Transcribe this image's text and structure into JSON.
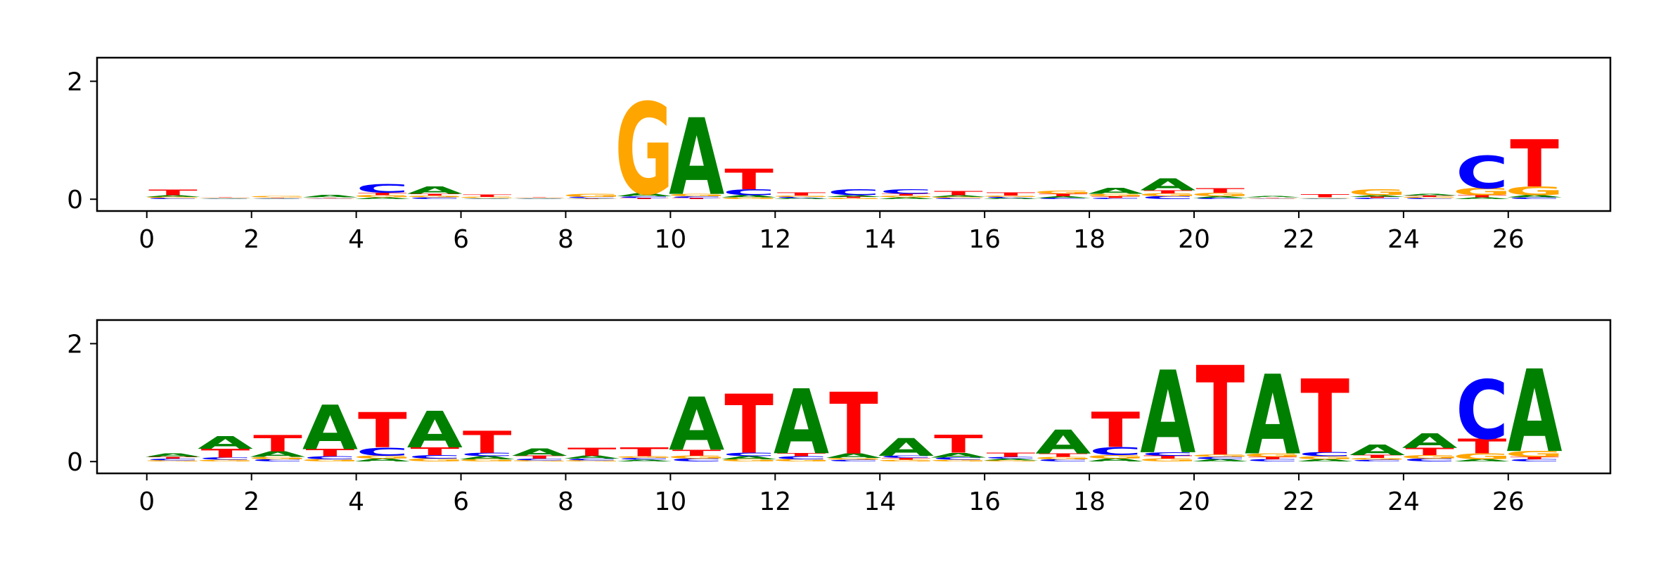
{
  "chart_data": [
    {
      "type": "sequence-logo",
      "x_range": [
        0,
        27
      ],
      "ylim": [
        0,
        2.4
      ],
      "xticks": [
        "0",
        "2",
        "4",
        "6",
        "8",
        "10",
        "12",
        "14",
        "16",
        "18",
        "20",
        "22",
        "24",
        "26"
      ],
      "yticks": [
        "0",
        "2"
      ],
      "colors": {
        "A": "#008000",
        "C": "#0000ff",
        "G": "#ffa500",
        "T": "#ff0000"
      },
      "positions": [
        {
          "x": 0,
          "heights": {
            "A": 0.03,
            "C": 0.02,
            "G": 0.02,
            "T": 0.09
          }
        },
        {
          "x": 1,
          "heights": {
            "A": 0.01,
            "C": 0.01,
            "G": 0.01,
            "T": 0.01
          }
        },
        {
          "x": 2,
          "heights": {
            "A": 0.01,
            "C": 0.01,
            "G": 0.02,
            "T": 0.01
          }
        },
        {
          "x": 3,
          "heights": {
            "A": 0.04,
            "C": 0.01,
            "G": 0.01,
            "T": 0.01
          }
        },
        {
          "x": 4,
          "heights": {
            "A": 0.03,
            "C": 0.15,
            "G": 0.04,
            "T": 0.04
          }
        },
        {
          "x": 5,
          "heights": {
            "A": 0.12,
            "C": 0.03,
            "G": 0.03,
            "T": 0.03
          }
        },
        {
          "x": 6,
          "heights": {
            "A": 0.01,
            "C": 0.01,
            "G": 0.02,
            "T": 0.04
          }
        },
        {
          "x": 7,
          "heights": {
            "A": 0.01,
            "C": 0.01,
            "G": 0.01,
            "T": 0.01
          }
        },
        {
          "x": 8,
          "heights": {
            "A": 0.01,
            "C": 0.02,
            "G": 0.05,
            "T": 0.01
          }
        },
        {
          "x": 9,
          "heights": {
            "A": 0.05,
            "C": 0.03,
            "G": 1.55,
            "T": 0.02
          }
        },
        {
          "x": 10,
          "heights": {
            "A": 1.3,
            "C": 0.03,
            "G": 0.04,
            "T": 0.02
          }
        },
        {
          "x": 11,
          "heights": {
            "A": 0.04,
            "C": 0.1,
            "G": 0.03,
            "T": 0.35
          }
        },
        {
          "x": 12,
          "heights": {
            "A": 0.02,
            "C": 0.02,
            "G": 0.02,
            "T": 0.05
          }
        },
        {
          "x": 13,
          "heights": {
            "A": 0.03,
            "C": 0.1,
            "G": 0.02,
            "T": 0.02
          }
        },
        {
          "x": 14,
          "heights": {
            "A": 0.03,
            "C": 0.08,
            "G": 0.03,
            "T": 0.03
          }
        },
        {
          "x": 15,
          "heights": {
            "A": 0.03,
            "C": 0.02,
            "G": 0.02,
            "T": 0.07
          }
        },
        {
          "x": 16,
          "heights": {
            "A": 0.02,
            "C": 0.02,
            "G": 0.02,
            "T": 0.05
          }
        },
        {
          "x": 17,
          "heights": {
            "A": 0.03,
            "C": 0.02,
            "G": 0.05,
            "T": 0.04
          }
        },
        {
          "x": 18,
          "heights": {
            "A": 0.1,
            "C": 0.02,
            "G": 0.04,
            "T": 0.03
          }
        },
        {
          "x": 19,
          "heights": {
            "A": 0.2,
            "C": 0.05,
            "G": 0.05,
            "T": 0.05
          }
        },
        {
          "x": 20,
          "heights": {
            "A": 0.03,
            "C": 0.02,
            "G": 0.06,
            "T": 0.08
          }
        },
        {
          "x": 21,
          "heights": {
            "A": 0.02,
            "C": 0.01,
            "G": 0.01,
            "T": 0.01
          }
        },
        {
          "x": 22,
          "heights": {
            "A": 0.01,
            "C": 0.01,
            "G": 0.01,
            "T": 0.05
          }
        },
        {
          "x": 23,
          "heights": {
            "A": 0.03,
            "C": 0.02,
            "G": 0.1,
            "T": 0.02
          }
        },
        {
          "x": 24,
          "heights": {
            "A": 0.03,
            "C": 0.02,
            "G": 0.02,
            "T": 0.02
          }
        },
        {
          "x": 25,
          "heights": {
            "A": 0.03,
            "C": 0.55,
            "G": 0.12,
            "T": 0.04
          }
        },
        {
          "x": 26,
          "heights": {
            "A": 0.04,
            "C": 0.03,
            "G": 0.15,
            "T": 0.8
          }
        }
      ]
    },
    {
      "type": "sequence-logo",
      "x_range": [
        0,
        27
      ],
      "ylim": [
        0,
        2.4
      ],
      "xticks": [
        "0",
        "2",
        "4",
        "6",
        "8",
        "10",
        "12",
        "14",
        "16",
        "18",
        "20",
        "22",
        "24",
        "26"
      ],
      "yticks": [
        "0",
        "2"
      ],
      "colors": {
        "A": "#008000",
        "C": "#0000ff",
        "G": "#ffa500",
        "T": "#ff0000"
      },
      "positions": [
        {
          "x": 0,
          "heights": {
            "A": 0.06,
            "C": 0.03,
            "G": 0.02,
            "T": 0.03
          }
        },
        {
          "x": 1,
          "heights": {
            "A": 0.22,
            "C": 0.04,
            "G": 0.03,
            "T": 0.15
          }
        },
        {
          "x": 2,
          "heights": {
            "A": 0.09,
            "C": 0.04,
            "G": 0.04,
            "T": 0.28
          }
        },
        {
          "x": 3,
          "heights": {
            "A": 0.75,
            "C": 0.05,
            "G": 0.04,
            "T": 0.12
          }
        },
        {
          "x": 4,
          "heights": {
            "A": 0.05,
            "C": 0.14,
            "G": 0.05,
            "T": 0.6
          }
        },
        {
          "x": 5,
          "heights": {
            "A": 0.62,
            "C": 0.06,
            "G": 0.05,
            "T": 0.13
          }
        },
        {
          "x": 6,
          "heights": {
            "A": 0.05,
            "C": 0.06,
            "G": 0.04,
            "T": 0.37
          }
        },
        {
          "x": 7,
          "heights": {
            "A": 0.12,
            "C": 0.03,
            "G": 0.02,
            "T": 0.05
          }
        },
        {
          "x": 8,
          "heights": {
            "A": 0.05,
            "C": 0.03,
            "G": 0.02,
            "T": 0.14
          }
        },
        {
          "x": 9,
          "heights": {
            "A": 0.03,
            "C": 0.03,
            "G": 0.03,
            "T": 0.15
          }
        },
        {
          "x": 10,
          "heights": {
            "A": 0.9,
            "C": 0.05,
            "G": 0.05,
            "T": 0.1
          }
        },
        {
          "x": 11,
          "heights": {
            "A": 0.05,
            "C": 0.06,
            "G": 0.04,
            "T": 1.0
          }
        },
        {
          "x": 12,
          "heights": {
            "A": 1.1,
            "C": 0.05,
            "G": 0.04,
            "T": 0.05
          }
        },
        {
          "x": 13,
          "heights": {
            "A": 0.08,
            "C": 0.03,
            "G": 0.03,
            "T": 1.05
          }
        },
        {
          "x": 14,
          "heights": {
            "A": 0.3,
            "C": 0.04,
            "G": 0.03,
            "T": 0.03
          }
        },
        {
          "x": 15,
          "heights": {
            "A": 0.08,
            "C": 0.04,
            "G": 0.03,
            "T": 0.3
          }
        },
        {
          "x": 16,
          "heights": {
            "A": 0.03,
            "C": 0.03,
            "G": 0.02,
            "T": 0.07
          }
        },
        {
          "x": 17,
          "heights": {
            "A": 0.4,
            "C": 0.04,
            "G": 0.04,
            "T": 0.06
          }
        },
        {
          "x": 18,
          "heights": {
            "A": 0.05,
            "C": 0.14,
            "G": 0.06,
            "T": 0.6
          }
        },
        {
          "x": 19,
          "heights": {
            "A": 1.4,
            "C": 0.06,
            "G": 0.05,
            "T": 0.05
          }
        },
        {
          "x": 20,
          "heights": {
            "A": 0.04,
            "C": 0.04,
            "G": 0.04,
            "T": 1.52
          }
        },
        {
          "x": 21,
          "heights": {
            "A": 1.35,
            "C": 0.04,
            "G": 0.06,
            "T": 0.04
          }
        },
        {
          "x": 22,
          "heights": {
            "A": 0.04,
            "C": 0.07,
            "G": 0.05,
            "T": 1.25
          }
        },
        {
          "x": 23,
          "heights": {
            "A": 0.18,
            "C": 0.03,
            "G": 0.03,
            "T": 0.05
          }
        },
        {
          "x": 24,
          "heights": {
            "A": 0.25,
            "C": 0.05,
            "G": 0.06,
            "T": 0.12
          }
        },
        {
          "x": 25,
          "heights": {
            "A": 0.04,
            "C": 1.0,
            "G": 0.1,
            "T": 0.25
          }
        },
        {
          "x": 26,
          "heights": {
            "A": 1.4,
            "C": 0.04,
            "G": 0.1,
            "T": 0.04
          }
        }
      ]
    }
  ]
}
